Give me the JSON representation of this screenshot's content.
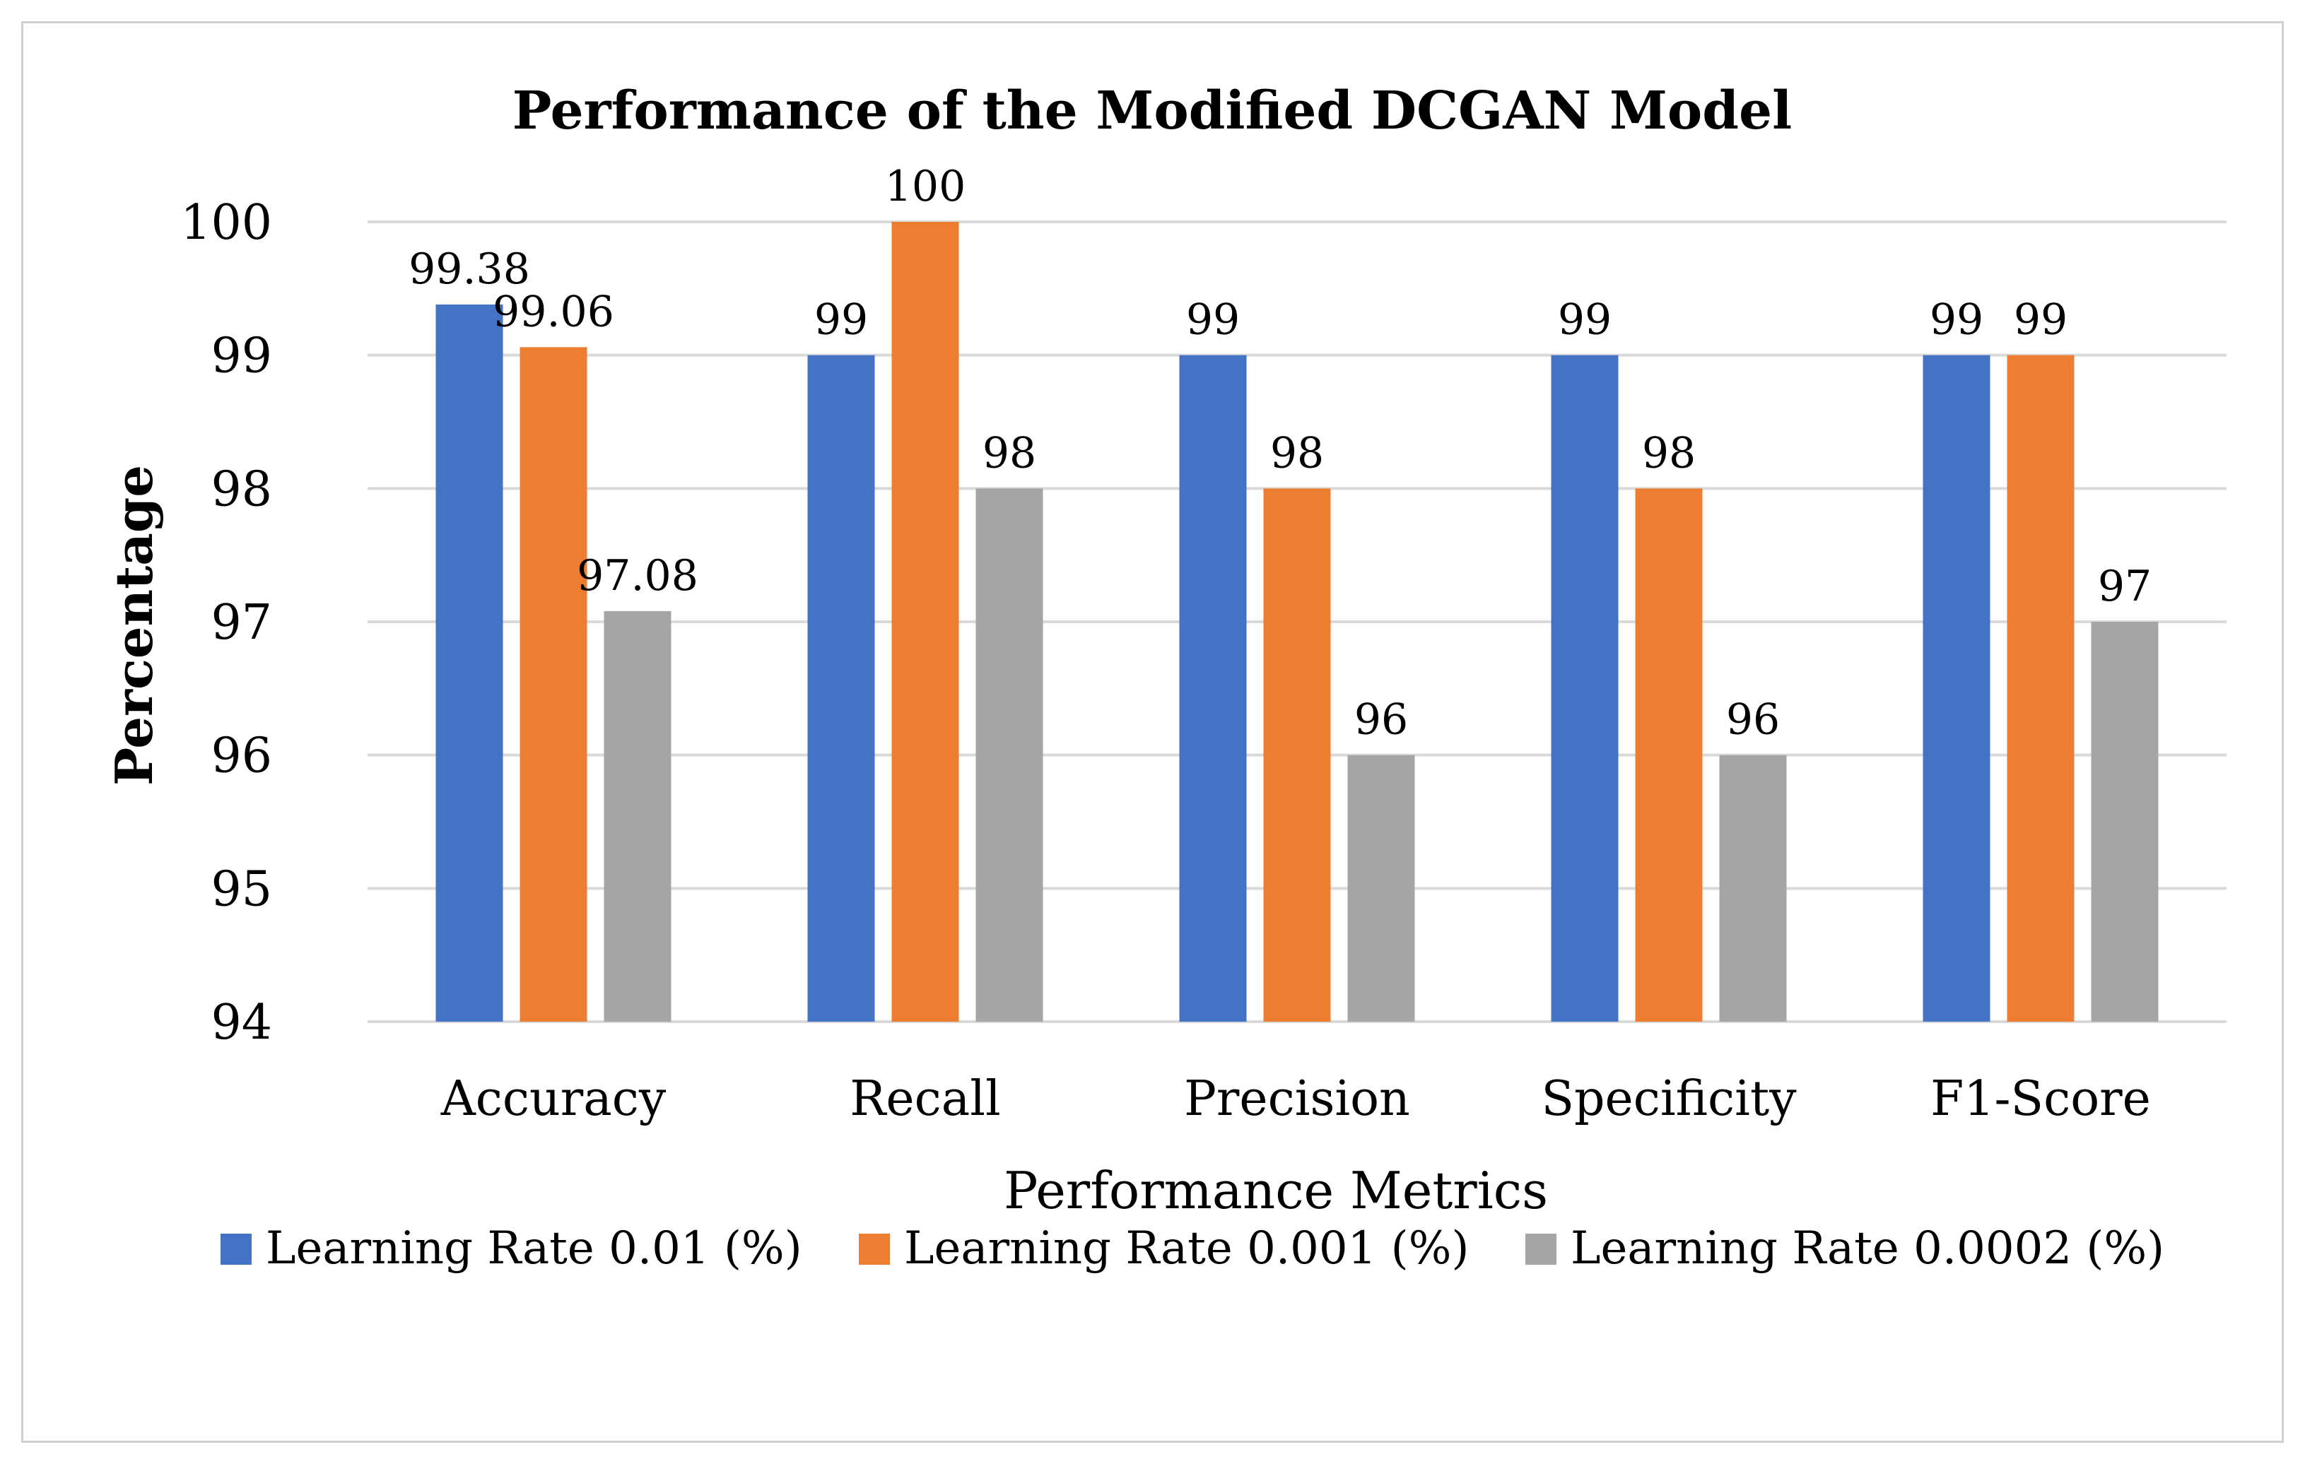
{
  "chart_data": {
    "type": "bar",
    "title": "Performance of the Modified DCGAN Model",
    "xlabel": "Performance Metrics",
    "ylabel": "Percentage",
    "ylim": [
      94,
      100
    ],
    "yticks": [
      "94",
      "95",
      "96",
      "97",
      "98",
      "99",
      "100"
    ],
    "categories": [
      "Accuracy",
      "Recall",
      "Precision",
      "Specificity",
      "F1-Score"
    ],
    "series": [
      {
        "name": "Learning Rate 0.01 (%)",
        "color": "#4472C4",
        "values": [
          99.38,
          99,
          99,
          99,
          99
        ],
        "labels": [
          "99.38",
          "99",
          "99",
          "99",
          "99"
        ]
      },
      {
        "name": "Learning Rate 0.001 (%)",
        "color": "#ED7D31",
        "values": [
          99.06,
          100,
          98,
          98,
          99
        ],
        "labels": [
          "99.06",
          "100",
          "98",
          "98",
          "99"
        ]
      },
      {
        "name": "Learning Rate 0.0002 (%)",
        "color": "#A5A5A5",
        "values": [
          97.08,
          98,
          96,
          96,
          97
        ],
        "labels": [
          "97.08",
          "98",
          "96",
          "96",
          "97"
        ]
      }
    ],
    "grid": true,
    "gridColor": "#d9d9d9",
    "legend": "bottom"
  }
}
